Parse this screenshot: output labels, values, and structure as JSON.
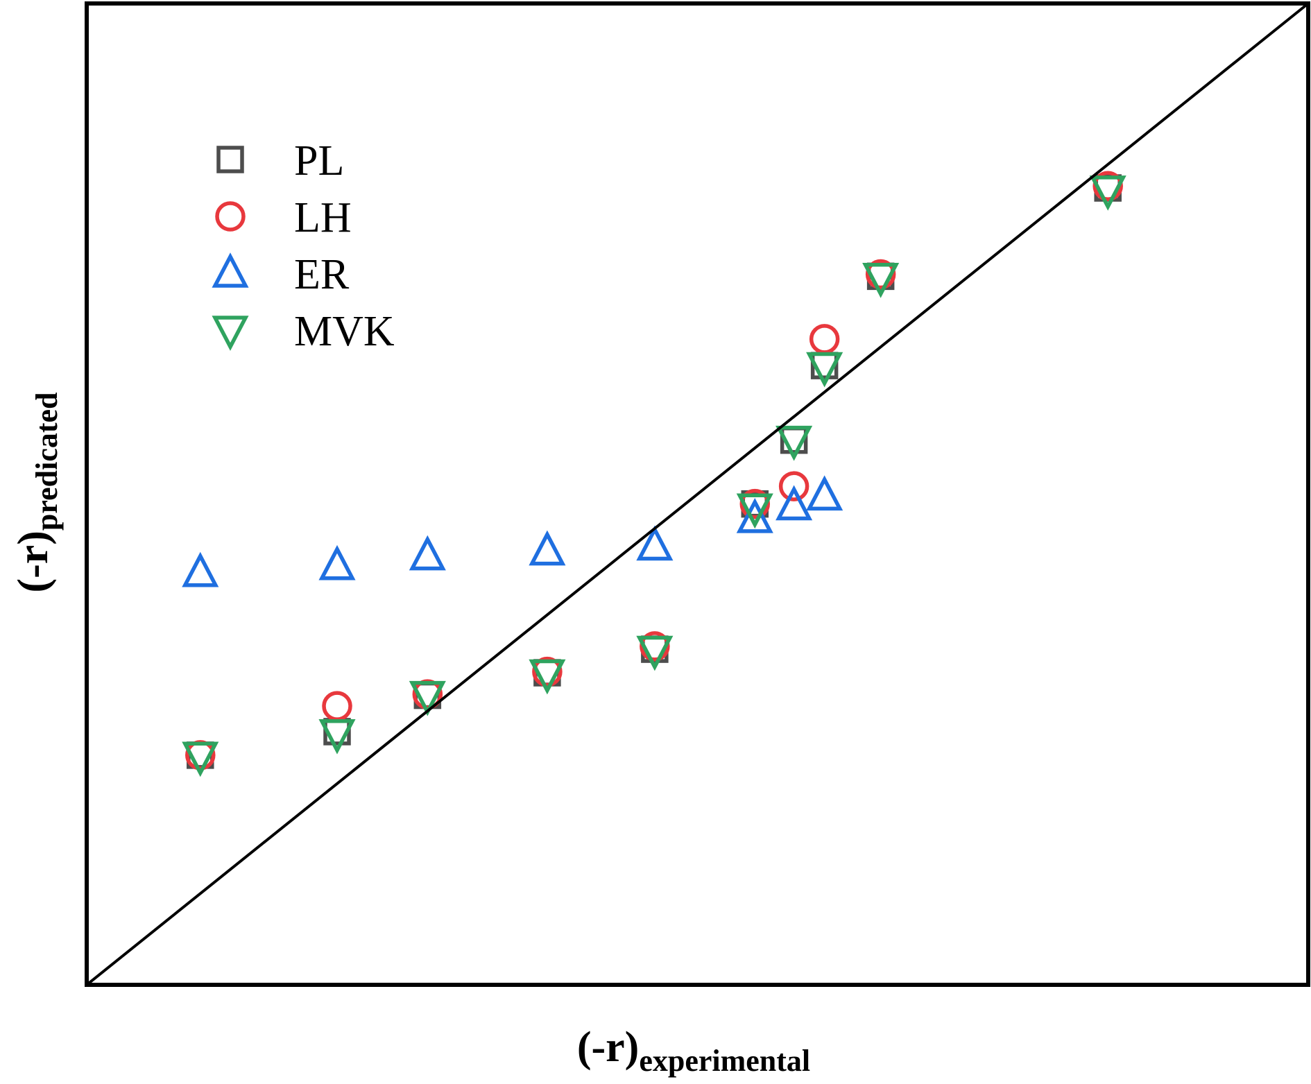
{
  "chart_data": {
    "type": "scatter",
    "title": "",
    "xlabel": {
      "main": "(-r)",
      "sub": "experimental"
    },
    "ylabel": {
      "main": "(-r)",
      "sub": "predicated"
    },
    "xlim": [
      0,
      100
    ],
    "ylim": [
      0,
      100
    ],
    "grid": false,
    "ticks_shown": false,
    "parity_line": true,
    "legend_placement": "top-left",
    "x": [
      9.3,
      20.5,
      27.9,
      37.7,
      46.5,
      54.7,
      57.9,
      60.4,
      65.0,
      83.6
    ],
    "series": [
      {
        "name": "PL",
        "marker": "square",
        "color": "#4d4d4d",
        "y": [
          23.4,
          25.8,
          29.5,
          31.8,
          34.2,
          49.0,
          55.5,
          63.1,
          72.2,
          81.2
        ]
      },
      {
        "name": "LH",
        "marker": "circle",
        "color": "#e8383d",
        "y": [
          23.4,
          28.4,
          29.6,
          31.9,
          34.5,
          49.0,
          50.8,
          65.8,
          72.4,
          81.4
        ]
      },
      {
        "name": "ER",
        "marker": "triangle-up",
        "color": "#1f6fe0",
        "y": [
          42.0,
          42.7,
          43.7,
          44.2,
          44.7,
          47.5,
          48.8,
          49.8,
          null,
          null
        ]
      },
      {
        "name": "MVK",
        "marker": "triangle-down",
        "color": "#2fa35f",
        "y": [
          23.3,
          25.6,
          29.5,
          31.7,
          34.1,
          48.6,
          55.5,
          63.0,
          72.1,
          81.0
        ]
      }
    ]
  }
}
